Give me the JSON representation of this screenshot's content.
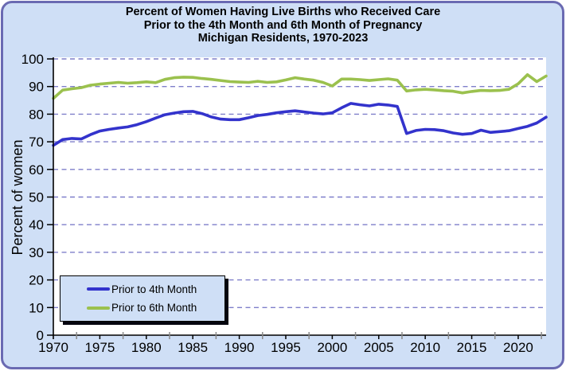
{
  "title": {
    "line1": "Percent of Women Having Live Births who Received Care",
    "line2": "Prior to the 4th Month and 6th Month of Pregnancy",
    "line3": "Michigan Residents, 1970-2023"
  },
  "colors": {
    "panel_background": "#cfdff6",
    "panel_border": "#6a6ab2",
    "plot_background": "#ffffff",
    "gridline": "#7f7fca",
    "axis": "#000000",
    "minor_tick_gray": "#8a8a8a",
    "legend_shadow": "#05050f",
    "series_4th_month": "#3333cc",
    "series_6th_month": "#9bc14e"
  },
  "chart_data": {
    "type": "line",
    "title": "Percent of Women Having Live Births who Received Care Prior to the 4th Month and 6th Month of Pregnancy, Michigan Residents, 1970-2023",
    "xlabel": "",
    "ylabel": "Percent of women",
    "xlim": [
      1970,
      2023
    ],
    "ylim": [
      0,
      100
    ],
    "grid": "horizontal-dashed",
    "legend_position": "inside-bottom-left",
    "yticks": [
      0,
      10,
      20,
      30,
      40,
      50,
      60,
      70,
      80,
      90,
      100
    ],
    "xticks": [
      1970,
      1975,
      1980,
      1985,
      1990,
      1995,
      2000,
      2005,
      2010,
      2015,
      2020
    ],
    "x": [
      1970,
      1971,
      1972,
      1973,
      1974,
      1975,
      1976,
      1977,
      1978,
      1979,
      1980,
      1981,
      1982,
      1983,
      1984,
      1985,
      1986,
      1987,
      1988,
      1989,
      1990,
      1991,
      1992,
      1993,
      1994,
      1995,
      1996,
      1997,
      1998,
      1999,
      2000,
      2001,
      2002,
      2003,
      2004,
      2005,
      2006,
      2007,
      2008,
      2009,
      2010,
      2011,
      2012,
      2013,
      2014,
      2015,
      2016,
      2017,
      2018,
      2019,
      2020,
      2021,
      2022,
      2023
    ],
    "series": [
      {
        "name": "Prior to 4th Month",
        "color": "#3333cc",
        "values": [
          68.7,
          70.8,
          71.2,
          71.0,
          72.6,
          73.9,
          74.5,
          75.0,
          75.4,
          76.2,
          77.3,
          78.6,
          79.8,
          80.4,
          80.9,
          81.0,
          80.2,
          79.0,
          78.2,
          78.0,
          78.0,
          78.7,
          79.5,
          79.9,
          80.5,
          80.9,
          81.2,
          80.8,
          80.4,
          80.1,
          80.5,
          82.3,
          83.9,
          83.4,
          83.0,
          83.6,
          83.3,
          82.8,
          73.0,
          74.1,
          74.5,
          74.4,
          74.0,
          73.2,
          72.7,
          73.0,
          74.2,
          73.4,
          73.7,
          74.0,
          74.8,
          75.6,
          76.8,
          78.9
        ]
      },
      {
        "name": "Prior to 6th Month",
        "color": "#9bc14e",
        "values": [
          85.7,
          88.7,
          89.2,
          89.6,
          90.5,
          90.9,
          91.2,
          91.5,
          91.2,
          91.4,
          91.7,
          91.4,
          92.6,
          93.2,
          93.4,
          93.3,
          92.9,
          92.6,
          92.2,
          91.8,
          91.6,
          91.5,
          91.9,
          91.5,
          91.7,
          92.4,
          93.2,
          92.7,
          92.3,
          91.5,
          90.2,
          92.7,
          92.7,
          92.5,
          92.2,
          92.5,
          92.8,
          92.3,
          88.4,
          88.8,
          89.0,
          88.8,
          88.5,
          88.3,
          87.7,
          88.2,
          88.6,
          88.5,
          88.6,
          89.0,
          91.0,
          94.3,
          91.8,
          93.8
        ]
      }
    ]
  }
}
